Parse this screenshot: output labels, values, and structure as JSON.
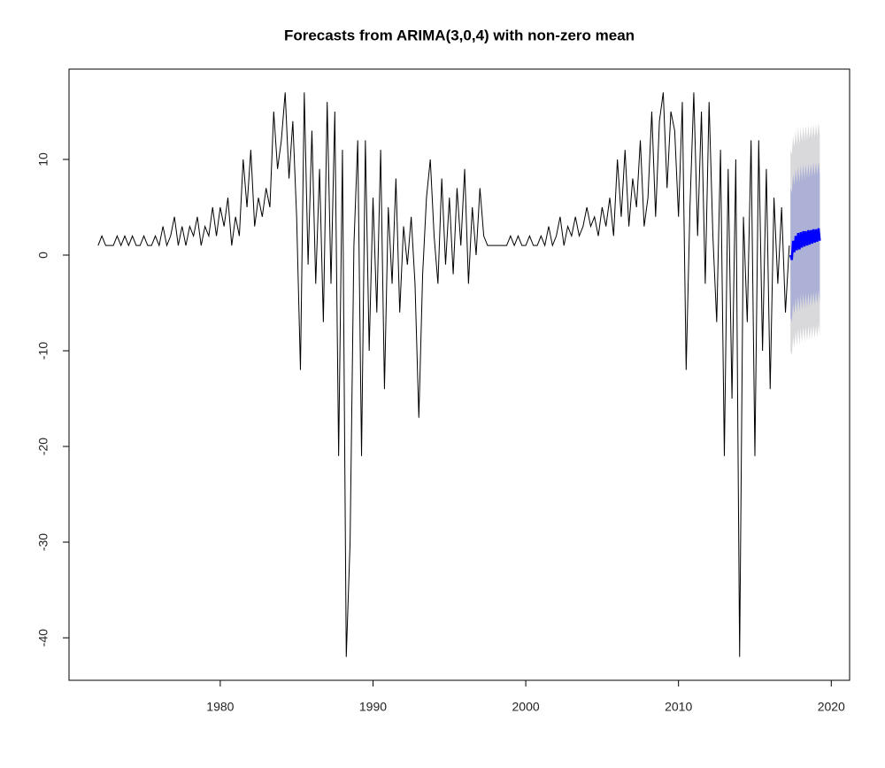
{
  "chart_data": {
    "type": "line",
    "title": "Forecasts from ARIMA(3,0,4) with non-zero mean",
    "xlim": [
      1970.1,
      2021.2
    ],
    "ylim": [
      -44.44,
      19.44
    ],
    "xticks": [
      1980,
      1990,
      2000,
      2010,
      2020
    ],
    "yticks": [
      -40,
      -30,
      -20,
      -10,
      0,
      10
    ],
    "x": [
      1972,
      1972.25,
      1972.5,
      1972.75,
      1973,
      1973.25,
      1973.5,
      1973.75,
      1974,
      1974.25,
      1974.5,
      1974.75,
      1975,
      1975.25,
      1975.5,
      1975.75,
      1976,
      1976.25,
      1976.5,
      1976.75,
      1977,
      1977.25,
      1977.5,
      1977.75,
      1978,
      1978.25,
      1978.5,
      1978.75,
      1979,
      1979.25,
      1979.5,
      1979.75,
      1980,
      1980.25,
      1980.5,
      1980.75,
      1981,
      1981.25,
      1981.5,
      1981.75,
      1982,
      1982.25,
      1982.5,
      1982.75,
      1983,
      1983.25,
      1983.5,
      1983.75,
      1984,
      1984.25,
      1984.5,
      1984.75,
      1985,
      1985.25,
      1985.5,
      1985.75,
      1986,
      1986.25,
      1986.5,
      1986.75,
      1987,
      1987.25,
      1987.5,
      1987.75,
      1988,
      1988.25,
      1988.5,
      1988.75,
      1989,
      1989.25,
      1989.5,
      1989.75,
      1990,
      1990.25,
      1990.5,
      1990.75,
      1991,
      1991.25,
      1991.5,
      1991.75,
      1992,
      1992.25,
      1992.5,
      1992.75,
      1993,
      1993.25,
      1993.5,
      1993.75,
      1994,
      1994.25,
      1994.5,
      1994.75,
      1995,
      1995.25,
      1995.5,
      1995.75,
      1996,
      1996.25,
      1996.5,
      1996.75,
      1997,
      1997.25,
      1997.5,
      1997.75,
      1998,
      1998.25,
      1998.5,
      1998.75,
      1999,
      1999.25,
      1999.5,
      1999.75,
      2000,
      2000.25,
      2000.5,
      2000.75,
      2001,
      2001.25,
      2001.5,
      2001.75,
      2002,
      2002.25,
      2002.5,
      2002.75,
      2003,
      2003.25,
      2003.5,
      2003.75,
      2004,
      2004.25,
      2004.5,
      2004.75,
      2005,
      2005.25,
      2005.5,
      2005.75,
      2006,
      2006.25,
      2006.5,
      2006.75,
      2007,
      2007.25,
      2007.5,
      2007.75,
      2008,
      2008.25,
      2008.5,
      2008.75,
      2009,
      2009.25,
      2009.5,
      2009.75,
      2010,
      2010.25,
      2010.5,
      2010.75,
      2011,
      2011.25,
      2011.5,
      2011.75,
      2012,
      2012.25,
      2012.5,
      2012.75,
      2013,
      2013.25,
      2013.5,
      2013.75,
      2014,
      2014.25,
      2014.5,
      2014.75,
      2015,
      2015.25,
      2015.5,
      2015.75,
      2016,
      2016.25,
      2016.5,
      2016.75,
      2017,
      2017.25
    ],
    "series": [
      {
        "color": "#000000",
        "values": [
          1,
          2,
          1,
          1,
          1,
          2,
          1,
          2,
          1,
          2,
          1,
          1,
          2,
          1,
          1,
          2,
          1,
          3,
          1,
          2,
          4,
          1,
          3,
          1,
          3,
          2,
          4,
          1,
          3,
          2,
          5,
          2,
          5,
          3,
          6,
          1,
          4,
          2,
          10,
          5,
          11,
          3,
          6,
          4,
          7,
          5,
          15,
          9,
          12,
          17,
          8,
          14,
          4,
          -12,
          17,
          -1,
          13,
          -3,
          9,
          -7,
          16,
          -3,
          15,
          -21,
          11,
          -42,
          -30,
          1,
          12,
          -21,
          12,
          -10,
          6,
          -6,
          11,
          -14,
          5,
          -3,
          8,
          -6,
          3,
          -1,
          4,
          -3,
          -17,
          -2,
          6,
          10,
          2,
          -3,
          8,
          -1,
          6,
          -2,
          7,
          1,
          9,
          -3,
          5,
          0,
          7,
          2,
          1,
          1,
          1,
          1,
          1,
          1,
          2,
          1,
          2,
          1,
          1,
          2,
          1,
          1,
          2,
          1,
          3,
          1,
          2,
          4,
          1,
          3,
          2,
          4,
          2,
          3,
          5,
          3,
          4,
          2,
          5,
          3,
          6,
          2,
          10,
          4,
          11,
          3,
          8,
          5,
          12,
          3,
          6,
          15,
          4,
          14,
          17,
          7,
          15,
          13,
          4,
          16,
          -12,
          5,
          17,
          2,
          15,
          -3,
          16,
          2,
          -7,
          11,
          -21,
          9,
          -15,
          10,
          -42,
          4,
          -7,
          12,
          -21,
          12,
          -10,
          9,
          -14,
          6,
          -3,
          5,
          -6,
          1
        ]
      }
    ],
    "forecast": {
      "x": [
        2017.33,
        2017.42,
        2017.5,
        2017.58,
        2017.67,
        2017.75,
        2017.83,
        2017.92,
        2018,
        2018.08,
        2018.17,
        2018.25,
        2018.33,
        2018.42,
        2018.5,
        2018.58,
        2018.67,
        2018.75,
        2018.83,
        2018.92,
        2019,
        2019.08,
        2019.17,
        2019.25
      ],
      "mean": [
        0,
        -0.5,
        1.5,
        0.3,
        2,
        0.5,
        2.3,
        0.6,
        2.4,
        0.8,
        2.5,
        0.9,
        2.5,
        1,
        2.6,
        1.1,
        2.6,
        1.2,
        2.7,
        1.3,
        2.7,
        1.4,
        2.8,
        1.5
      ],
      "lower_80": [
        -6.5,
        -7,
        -5,
        -6.2,
        -4.5,
        -6,
        -4.2,
        -5.9,
        -4.1,
        -5.7,
        -4,
        -5.6,
        -4,
        -5.5,
        -3.9,
        -5.4,
        -3.9,
        -5.3,
        -3.8,
        -5.2,
        -3.8,
        -5.1,
        -3.7,
        -5
      ],
      "upper_80": [
        7,
        6.5,
        8.5,
        7.3,
        9,
        7.5,
        9.3,
        7.6,
        9.4,
        7.8,
        9.5,
        7.9,
        9.5,
        8,
        9.6,
        8.1,
        9.6,
        8.2,
        9.7,
        8.3,
        9.7,
        8.4,
        9.8,
        8.5
      ],
      "lower_95": [
        -10,
        -10.5,
        -8.5,
        -9.7,
        -8,
        -9.5,
        -7.7,
        -9.4,
        -7.6,
        -9.2,
        -7.5,
        -9.1,
        -7.5,
        -9,
        -7.4,
        -8.9,
        -7.4,
        -8.8,
        -7.3,
        -8.7,
        -7.3,
        -8.6,
        -7.2,
        -8.5
      ],
      "upper_95": [
        11,
        10.5,
        12.5,
        11.3,
        13,
        11.5,
        13.3,
        11.6,
        13.4,
        11.8,
        13.5,
        11.9,
        13.5,
        12,
        13.6,
        12.1,
        13.6,
        12.2,
        13.7,
        12.3,
        13.7,
        12.4,
        13.8,
        12.5
      ],
      "mean_color": "#0000ff",
      "color_80": "#adb1d6",
      "color_95": "#d9d9dc"
    }
  }
}
